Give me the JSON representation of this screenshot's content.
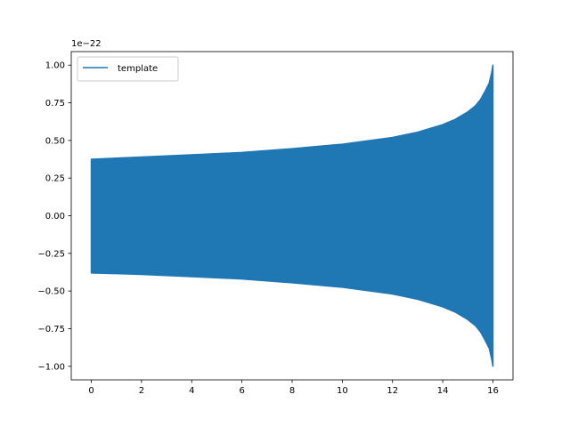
{
  "chart_data": {
    "type": "line",
    "title": "",
    "xlabel": "",
    "ylabel": "",
    "xlim": [
      -0.8,
      16.8
    ],
    "ylim": [
      -1.09,
      1.09
    ],
    "y_offset_text": "1e−22",
    "x_ticks": [
      0,
      2,
      4,
      6,
      8,
      10,
      12,
      14,
      16
    ],
    "y_ticks": [
      -1.0,
      -0.75,
      -0.5,
      -0.25,
      0.0,
      0.25,
      0.5,
      0.75,
      1.0
    ],
    "x_tick_labels": [
      "0",
      "2",
      "4",
      "6",
      "8",
      "10",
      "12",
      "14",
      "16"
    ],
    "y_tick_labels": [
      "−1.00",
      "−0.75",
      "−0.50",
      "−0.25",
      "0.00",
      "0.25",
      "0.50",
      "0.75",
      "1.00"
    ],
    "grid": false,
    "legend_position": "top-left",
    "series": [
      {
        "name": "template",
        "color": "#1f77b4",
        "style": "oscillating chirp filling its envelope",
        "x_range": [
          0.0,
          16.0
        ],
        "upper_envelope": {
          "x": [
            0.0,
            2.0,
            4.0,
            6.0,
            8.0,
            10.0,
            12.0,
            13.0,
            14.0,
            14.5,
            15.0,
            15.3,
            15.5,
            15.7,
            15.85,
            15.95,
            16.0
          ],
          "y": [
            0.375,
            0.39,
            0.405,
            0.42,
            0.445,
            0.475,
            0.52,
            0.555,
            0.605,
            0.64,
            0.69,
            0.73,
            0.77,
            0.83,
            0.88,
            0.95,
            1.0
          ]
        },
        "lower_envelope": {
          "x": [
            0.0,
            2.0,
            4.0,
            6.0,
            8.0,
            10.0,
            12.0,
            13.0,
            14.0,
            14.5,
            15.0,
            15.3,
            15.5,
            15.7,
            15.85,
            15.95,
            16.0
          ],
          "y": [
            -0.38,
            -0.39,
            -0.405,
            -0.42,
            -0.445,
            -0.475,
            -0.52,
            -0.555,
            -0.605,
            -0.64,
            -0.69,
            -0.73,
            -0.77,
            -0.83,
            -0.88,
            -0.95,
            -1.0
          ]
        },
        "start_value": 0.14
      }
    ]
  }
}
